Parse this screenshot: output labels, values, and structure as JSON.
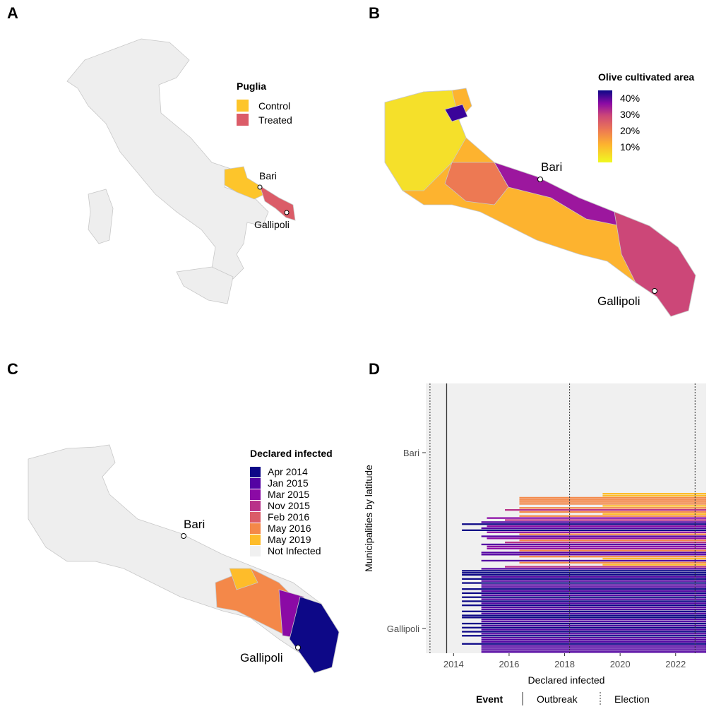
{
  "panels": {
    "a": "A",
    "b": "B",
    "c": "C",
    "d": "D"
  },
  "panel_a": {
    "legend_title": "Puglia",
    "legend": [
      {
        "label": "Control",
        "color": "#FDC52B"
      },
      {
        "label": "Treated",
        "color": "#DB5C68"
      }
    ],
    "cities": {
      "bari": "Bari",
      "gallipoli": "Gallipoli"
    }
  },
  "panel_b": {
    "legend_title": "Olive cultivated area",
    "scale_labels": [
      "40%",
      "30%",
      "20%",
      "10%"
    ],
    "cities": {
      "bari": "Bari",
      "gallipoli": "Gallipoli"
    }
  },
  "panel_c": {
    "legend_title": "Declared infected",
    "legend": [
      {
        "label": "Apr 2014",
        "color": "#0D0887"
      },
      {
        "label": "Jan 2015",
        "color": "#5402A3"
      },
      {
        "label": "Mar 2015",
        "color": "#8B0AA5"
      },
      {
        "label": "Nov 2015",
        "color": "#B93289"
      },
      {
        "label": "Feb 2016",
        "color": "#DB5C68"
      },
      {
        "label": "May 2016",
        "color": "#F48849"
      },
      {
        "label": "May 2019",
        "color": "#FEBC2A"
      },
      {
        "label": "Not Infected",
        "color": "#F0F0F0"
      }
    ],
    "cities": {
      "bari": "Bari",
      "gallipoli": "Gallipoli"
    }
  },
  "chart_data": {
    "type": "bar",
    "title": "",
    "xlabel": "Declared infected",
    "ylabel": "Municipalities by latitude",
    "xlim": [
      2013.0,
      2023.1
    ],
    "x_ticks": [
      "2014",
      "2016",
      "2018",
      "2020",
      "2022"
    ],
    "y_ticks": [
      "Bari",
      "Gallipoli"
    ],
    "events": {
      "outbreak": [
        2013.75
      ],
      "election": [
        2013.15,
        2018.18,
        2022.7
      ]
    },
    "legend": {
      "title": "Event",
      "items": [
        "Outbreak",
        "Election"
      ],
      "placement": "bottom"
    },
    "categories": [
      {
        "label": "Apr 2014",
        "start": 2014.3,
        "color": "#0D0887"
      },
      {
        "label": "Jan 2015",
        "start": 2015.0,
        "color": "#5402A3"
      },
      {
        "label": "Mar 2015",
        "start": 2015.2,
        "color": "#8B0AA5"
      },
      {
        "label": "Nov 2015",
        "start": 2015.85,
        "color": "#B93289"
      },
      {
        "label": "Feb 2016",
        "start": 2016.1,
        "color": "#DB5C68"
      },
      {
        "label": "May 2016",
        "start": 2016.37,
        "color": "#F48849"
      },
      {
        "label": "May 2019",
        "start": 2019.37,
        "color": "#FEBC2A"
      }
    ],
    "rows_category_index": [
      6,
      6,
      5,
      5,
      5,
      5,
      6,
      5,
      3,
      5,
      6,
      5,
      2,
      3,
      1,
      0,
      2,
      1,
      0,
      2,
      5,
      1,
      2,
      5,
      3,
      1,
      2,
      2,
      5,
      1,
      1,
      5,
      6,
      1,
      5,
      6,
      3,
      1,
      0,
      0,
      0,
      1,
      0,
      1,
      0,
      1,
      1,
      0,
      1,
      0,
      1,
      0,
      1,
      0,
      1,
      0,
      1,
      1,
      0,
      1,
      0,
      0,
      1,
      1,
      0,
      1,
      0,
      1,
      0,
      1,
      0,
      1,
      1,
      1,
      0,
      1,
      1,
      1,
      1
    ]
  }
}
